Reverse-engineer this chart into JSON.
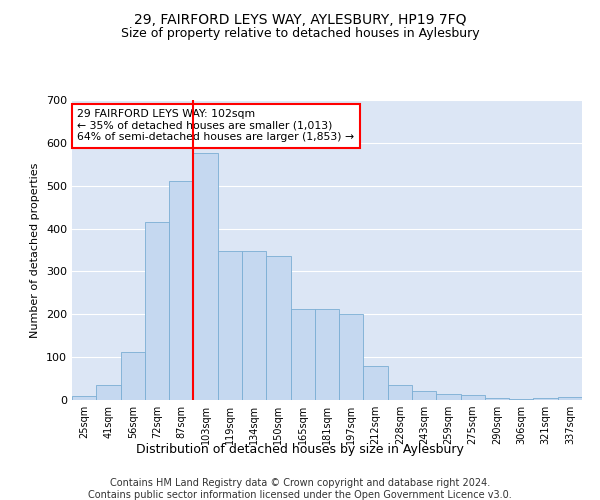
{
  "title": "29, FAIRFORD LEYS WAY, AYLESBURY, HP19 7FQ",
  "subtitle": "Size of property relative to detached houses in Aylesbury",
  "xlabel": "Distribution of detached houses by size in Aylesbury",
  "ylabel": "Number of detached properties",
  "categories": [
    "25sqm",
    "41sqm",
    "56sqm",
    "72sqm",
    "87sqm",
    "103sqm",
    "119sqm",
    "134sqm",
    "150sqm",
    "165sqm",
    "181sqm",
    "197sqm",
    "212sqm",
    "228sqm",
    "243sqm",
    "259sqm",
    "275sqm",
    "290sqm",
    "306sqm",
    "321sqm",
    "337sqm"
  ],
  "bar_heights": [
    10,
    35,
    113,
    415,
    510,
    577,
    348,
    348,
    335,
    213,
    213,
    200,
    80,
    35,
    20,
    13,
    12,
    5,
    2,
    5,
    7
  ],
  "bar_color": "#c5d8f0",
  "bar_edge_color": "#7aadd4",
  "vline_pos": 4.5,
  "vline_color": "red",
  "annotation_text": "29 FAIRFORD LEYS WAY: 102sqm\n← 35% of detached houses are smaller (1,013)\n64% of semi-detached houses are larger (1,853) →",
  "annotation_box_color": "white",
  "annotation_box_edge": "red",
  "ylim": [
    0,
    700
  ],
  "yticks": [
    0,
    100,
    200,
    300,
    400,
    500,
    600,
    700
  ],
  "background_color": "#dce6f5",
  "grid_color": "#ffffff",
  "footer_line1": "Contains HM Land Registry data © Crown copyright and database right 2024.",
  "footer_line2": "Contains public sector information licensed under the Open Government Licence v3.0."
}
